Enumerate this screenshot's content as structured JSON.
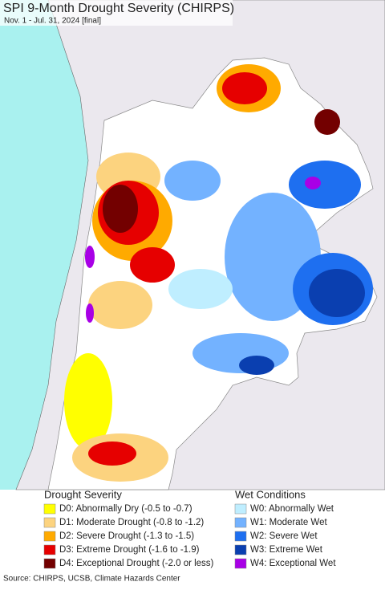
{
  "header": {
    "title": "SPI 9-Month Drought Severity (CHIRPS)",
    "subtitle": "Nov. 1 - Jul. 31, 2024 [final]"
  },
  "legend": {
    "drought": {
      "title": "Drought Severity",
      "items": [
        {
          "label": "D0: Abnormally Dry (-0.5 to -0.7)",
          "color": "#ffff00"
        },
        {
          "label": "D1: Moderate Drought (-0.8 to -1.2)",
          "color": "#fcd37f"
        },
        {
          "label": "D2: Severe Drought (-1.3 to -1.5)",
          "color": "#ffaa00"
        },
        {
          "label": "D3: Extreme Drought (-1.6 to -1.9)",
          "color": "#e60000"
        },
        {
          "label": "D4: Exceptional Drought (-2.0 or less)",
          "color": "#730000"
        }
      ]
    },
    "wet": {
      "title": "Wet Conditions",
      "items": [
        {
          "label": "W0: Abnormally Wet",
          "color": "#bfeeff"
        },
        {
          "label": "W1: Moderate Wet",
          "color": "#73b2ff"
        },
        {
          "label": "W2: Severe Wet",
          "color": "#1e6ff0"
        },
        {
          "label": "W3: Extreme Wet",
          "color": "#0a3fb0"
        },
        {
          "label": "W4: Exceptional Wet",
          "color": "#a800e6"
        }
      ]
    }
  },
  "source": "Source: CHIRPS, UCSB, Climate Hazards Center"
}
